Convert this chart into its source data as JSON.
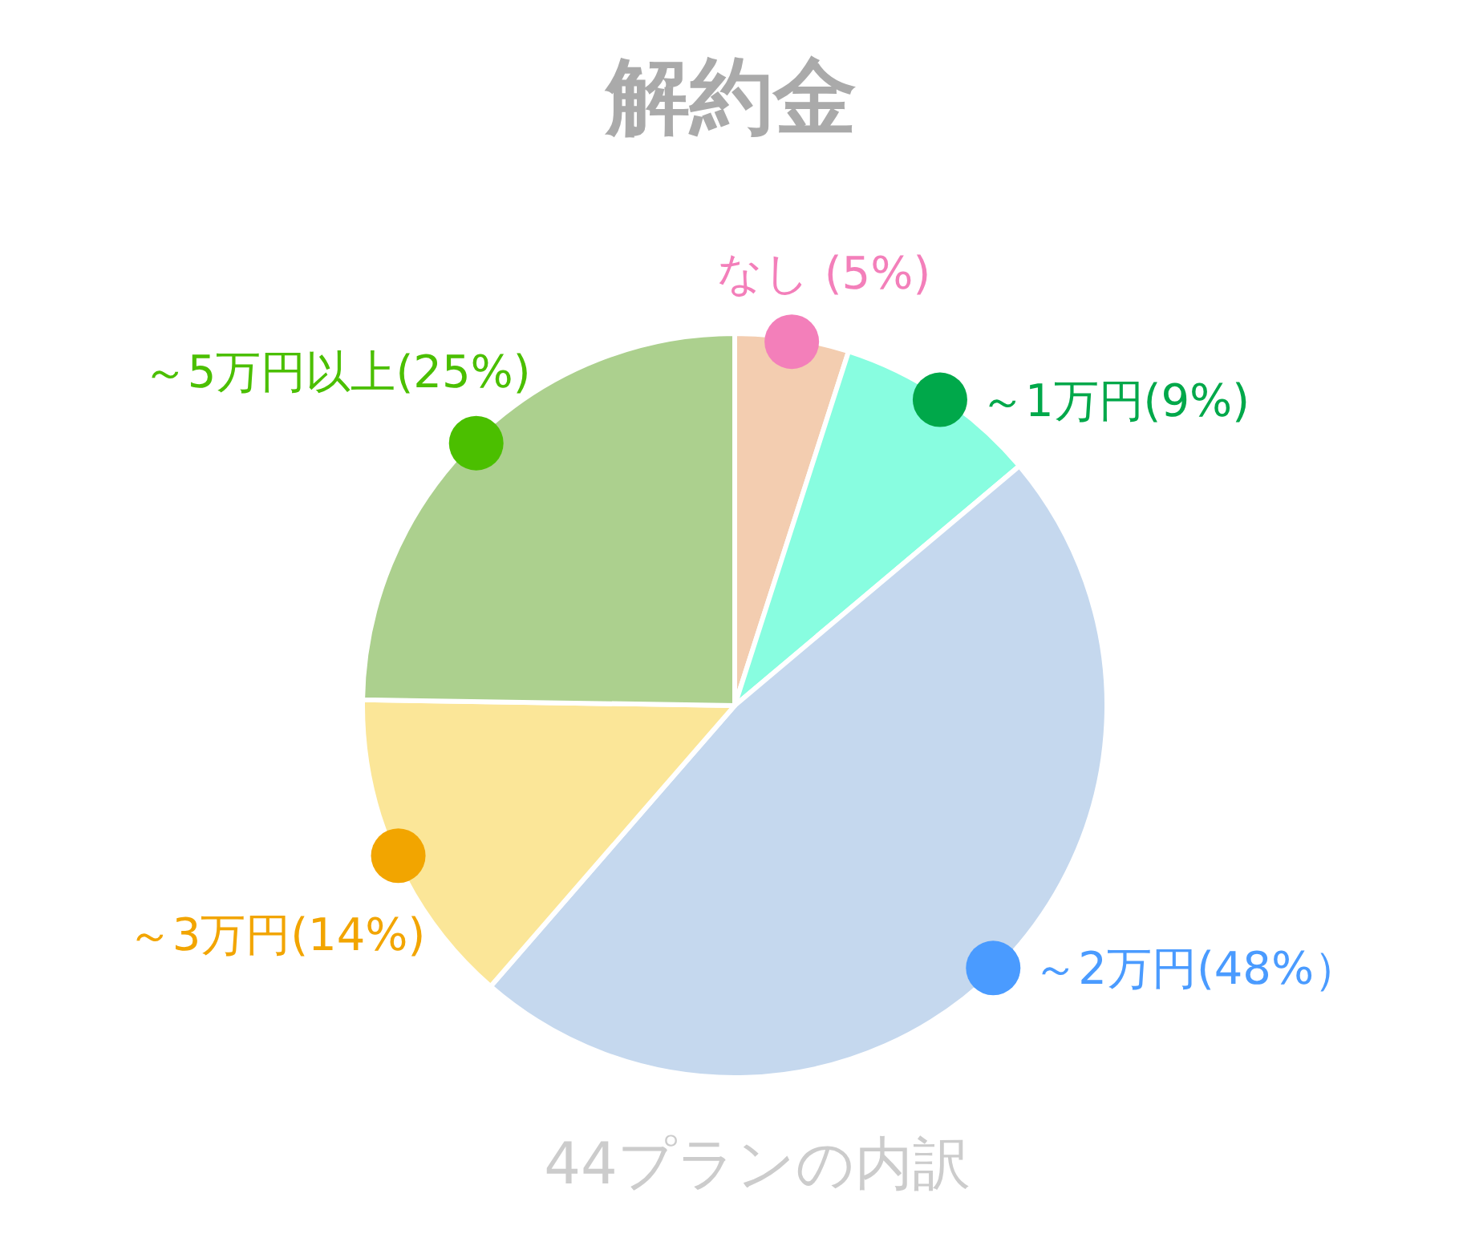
{
  "chart_data": {
    "type": "pie",
    "title": "解約金",
    "categories": [
      "なし (5%)",
      "～1万円(9%)",
      "～2万円(48%）",
      "～3万円(14%)",
      "～5万円以上(25%)"
    ],
    "values": [
      5,
      9,
      48,
      14,
      25
    ],
    "colors": [
      "#f3cdb0",
      "#88fde0",
      "#c5d8ee",
      "#fbe698",
      "#acd08e"
    ],
    "annotations": [
      "44プランの内訳"
    ]
  }
}
